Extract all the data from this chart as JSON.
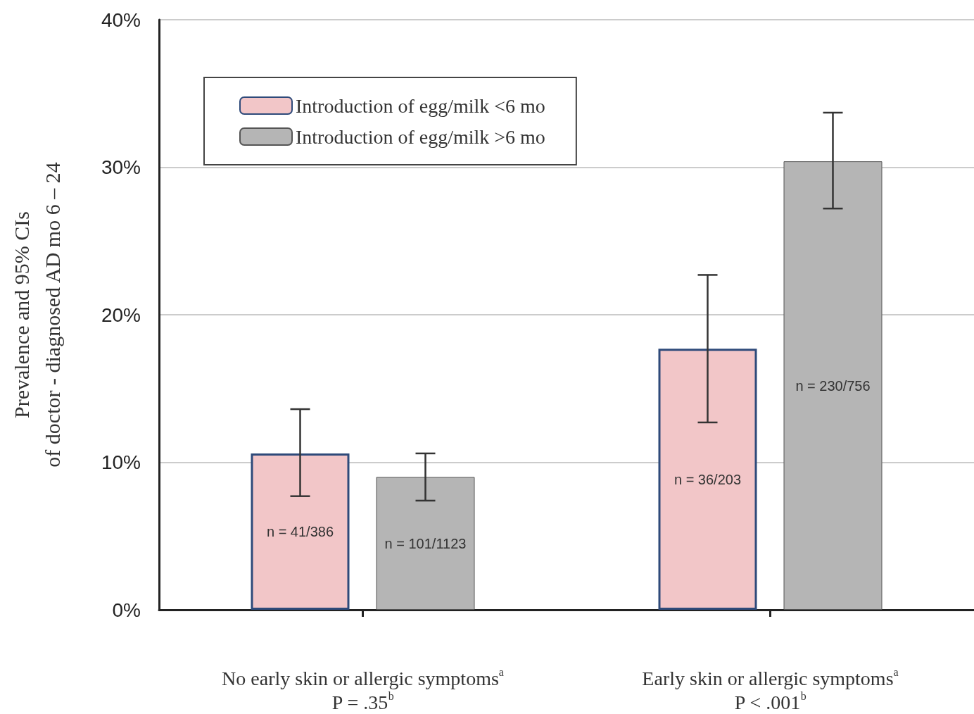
{
  "chart_data": {
    "type": "bar",
    "ylabel": "Prevalence and 95% CIs\nof doctor - diagnosed AD mo 6 – 24",
    "categories": [
      "No early skin or allergic symptoms$^{a}$\nP = .35$^{b}$",
      "Early skin or allergic symptoms$^{a}$\nP < .001$^{b}$"
    ],
    "series": [
      {
        "name": "Introduction of egg/milk <6 mo",
        "color": "#f2c6c8",
        "values": [
          10.6,
          17.7
        ],
        "errors": [
          [
            7.7,
            13.6
          ],
          [
            12.7,
            22.7
          ]
        ],
        "value_labels": [
          "n = 41/386",
          "n = 36/203"
        ]
      },
      {
        "name": "Introduction of egg/milk >6 mo",
        "color": "#b5b5b5",
        "values": [
          9.0,
          30.4
        ],
        "errors": [
          [
            7.4,
            10.6
          ],
          [
            27.2,
            33.7
          ]
        ],
        "value_labels": [
          "n = 101/1123",
          "n = 230/756"
        ]
      }
    ],
    "ylim": [
      0,
      40
    ],
    "yticks": [
      {
        "value": 0,
        "label": "0%"
      },
      {
        "value": 10,
        "label": "10%"
      },
      {
        "value": 20,
        "label": "20%"
      },
      {
        "value": 30,
        "label": "30%"
      },
      {
        "value": 40,
        "label": "40%"
      }
    ],
    "grid": "y",
    "legend": "top left"
  }
}
